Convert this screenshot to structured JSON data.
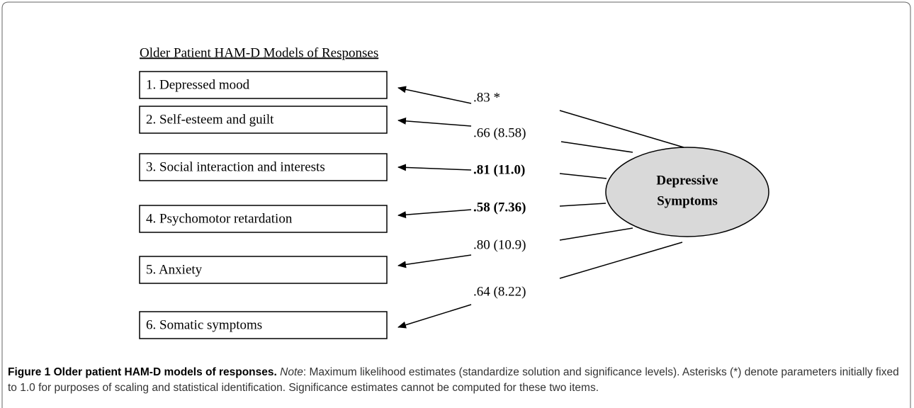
{
  "figure": {
    "title": "Older Patient HAM-D Models of Responses",
    "items": [
      "1. Depressed mood",
      "2. Self-esteem and guilt",
      "3. Social interaction and interests",
      "4. Psychomotor retardation",
      "5. Anxiety",
      "6. Somatic symptoms"
    ],
    "latent": [
      "Depressive",
      "Symptoms"
    ],
    "paths": [
      {
        "label": ".83 *",
        "bold": false
      },
      {
        "label": ".66 (8.58)",
        "bold": false
      },
      {
        "label": ".81 (11.0)",
        "bold": true
      },
      {
        "label": ".58 (7.36)",
        "bold": true
      },
      {
        "label": ".80 (10.9)",
        "bold": false
      },
      {
        "label": ".64 (8.22)",
        "bold": false
      }
    ]
  },
  "caption": {
    "label": "Figure 1 Older patient HAM-D models of responses.",
    "note": "Note",
    "text": ": Maximum likelihood estimates (standardize solution and significance levels). Asterisks (*) denote parameters initially fixed to 1.0 for purposes of scaling and statistical identification. Significance estimates cannot be computed for these two items."
  }
}
